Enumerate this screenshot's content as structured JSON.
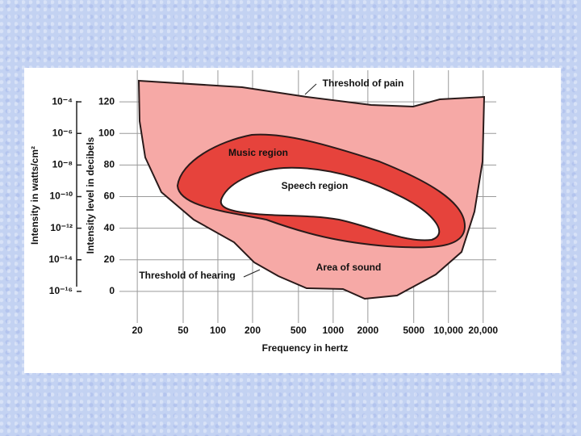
{
  "chart_data": {
    "type": "region",
    "x_label": "Frequency in hertz",
    "y_label": "Intensity level in decibels",
    "y2_label": "Intensity in watts/cm²",
    "annotations": [
      "Threshold of pain",
      "Music region",
      "Speech region",
      "Area of sound",
      "Threshold of hearing"
    ],
    "x_log": true,
    "y2_log": true,
    "grid": true,
    "xlim": [
      14,
      26000
    ],
    "xticks": [
      20,
      50,
      100,
      200,
      500,
      1000,
      2000,
      5000,
      {
        "value": 10000,
        "label": "10,000"
      },
      {
        "value": 20000,
        "label": "20,000"
      }
    ],
    "ylim": [
      -20,
      140
    ],
    "yticks": [
      0,
      20,
      40,
      60,
      80,
      100,
      120
    ],
    "y2lim": [
      1e-18,
      0.01
    ],
    "y2ticks": [
      {
        "value": 0.0001,
        "label": "10⁻⁴"
      },
      {
        "value": 1e-06,
        "label": "10⁻⁶"
      },
      {
        "value": 1e-08,
        "label": "10⁻⁸"
      },
      {
        "value": 1e-10,
        "label": "10⁻¹⁰"
      },
      {
        "value": 1e-12,
        "label": "10⁻¹²"
      },
      {
        "value": 1e-14,
        "label": "10⁻¹⁴"
      },
      {
        "value": 1e-16,
        "label": "10⁻¹⁶"
      }
    ]
  }
}
